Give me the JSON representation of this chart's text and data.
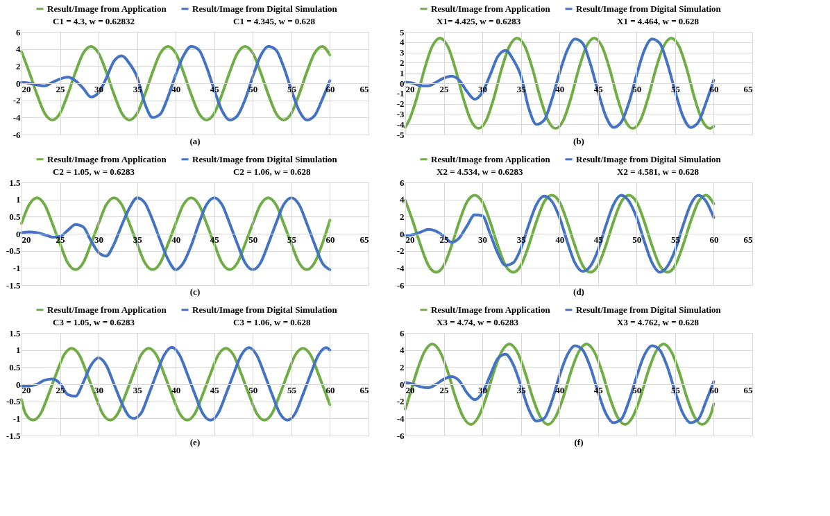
{
  "chart_data": [
    {
      "type": "line",
      "xlim": [
        20,
        65
      ],
      "xticks": [
        20,
        25,
        30,
        35,
        40,
        45,
        50,
        55,
        60,
        65
      ],
      "ylim": [
        -6,
        6
      ],
      "yticks": [
        -6,
        -4,
        -2,
        0,
        2,
        4,
        6
      ],
      "grid": true,
      "legend": "top",
      "annotations": [
        "C1 = 4.3, w = 0.62832",
        "C1 = 4.345, w = 0.628",
        "(a)"
      ],
      "series": [
        {
          "name": "Result/Image from Application",
          "color": "#70ad47",
          "x": [
            20,
            21,
            22,
            23,
            24,
            25,
            26,
            27,
            28,
            29,
            30,
            31,
            32,
            33,
            34,
            35,
            36,
            37,
            38,
            39,
            40,
            41,
            42,
            43,
            44,
            45,
            46,
            47,
            48,
            49,
            50,
            51,
            52,
            53,
            54,
            55,
            56,
            57,
            58,
            59,
            60
          ],
          "values": [
            3.7,
            1.3,
            -1.3,
            -3.5,
            -4.3,
            -3.5,
            -1.3,
            1.3,
            3.5,
            4.3,
            3.5,
            1.3,
            -1.3,
            -3.5,
            -4.3,
            -3.5,
            -1.3,
            1.3,
            3.5,
            4.3,
            3.5,
            1.3,
            -1.3,
            -3.5,
            -4.3,
            -3.5,
            -1.3,
            1.3,
            3.5,
            4.3,
            3.5,
            1.3,
            -1.3,
            -3.5,
            -4.3,
            -3.5,
            -1.3,
            1.3,
            3.5,
            4.3,
            3.3
          ]
        },
        {
          "name": "Result/Image from Digital Simulation",
          "color": "#4472c4",
          "x": [
            20,
            21,
            22,
            23,
            24,
            25,
            26,
            27,
            28,
            29,
            30,
            31,
            32,
            33,
            34,
            35,
            36,
            37,
            38,
            39,
            40,
            41,
            42,
            43,
            44,
            45,
            46,
            47,
            48,
            49,
            50,
            51,
            52,
            53,
            54,
            55,
            56,
            57,
            58,
            59,
            60
          ],
          "values": [
            0.1,
            0,
            -0.2,
            -0.3,
            0.1,
            0.5,
            0.7,
            0.3,
            -0.6,
            -1.6,
            -1.1,
            0.6,
            2.6,
            3.2,
            2.3,
            0.7,
            -2.4,
            -4.0,
            -3.6,
            -1.6,
            1.0,
            3.2,
            4.3,
            3.9,
            1.9,
            -0.8,
            -3.2,
            -4.3,
            -3.8,
            -1.9,
            0.8,
            3.2,
            4.3,
            3.9,
            1.9,
            -0.8,
            -3.2,
            -4.3,
            -3.8,
            -1.9,
            0.3
          ]
        }
      ]
    },
    {
      "type": "line",
      "xlim": [
        20,
        65
      ],
      "xticks": [
        20,
        25,
        30,
        35,
        40,
        45,
        50,
        55,
        60,
        65
      ],
      "ylim": [
        -5,
        5
      ],
      "yticks": [
        -5,
        -4,
        -3,
        -2,
        -1,
        0,
        1,
        2,
        3,
        4,
        5
      ],
      "grid": true,
      "legend": "top",
      "annotations": [
        "X1= 4.425, w = 0.6283",
        "X1 = 4.464, w = 0.628",
        "(b)"
      ],
      "series": [
        {
          "name": "Result/Image from Application",
          "color": "#70ad47",
          "x": [
            20,
            20.5,
            21.5,
            22.5,
            23.5,
            24.5,
            25.5,
            26.5,
            27.5,
            28.5,
            29.5,
            30.5,
            31.5,
            32.5,
            33.5,
            34.5,
            35.5,
            36.5,
            37.5,
            38.5,
            39.5,
            40.5,
            41.5,
            42.5,
            43.5,
            44.5,
            45.5,
            46.5,
            47.5,
            48.5,
            49.5,
            50.5,
            51.5,
            52.5,
            53.5,
            54.5,
            55.5,
            56.5,
            57.5,
            58.5,
            59.5,
            60
          ],
          "values": [
            -4.3,
            -3.6,
            -1.4,
            1.4,
            3.6,
            4.4,
            3.6,
            1.4,
            -1.4,
            -3.6,
            -4.4,
            -3.6,
            -1.4,
            1.4,
            3.6,
            4.4,
            3.6,
            1.4,
            -1.4,
            -3.6,
            -4.4,
            -3.6,
            -1.4,
            1.4,
            3.6,
            4.4,
            3.6,
            1.4,
            -1.4,
            -3.6,
            -4.4,
            -3.6,
            -1.4,
            1.4,
            3.6,
            4.4,
            3.6,
            1.4,
            -1.4,
            -3.6,
            -4.4,
            -4.2
          ]
        },
        {
          "name": "Result/Image from Digital Simulation",
          "color": "#4472c4",
          "x": [
            20,
            21,
            22,
            23,
            24,
            25,
            26,
            27,
            28,
            29,
            30,
            31,
            32,
            33,
            34,
            35,
            36,
            37,
            38,
            39,
            40,
            41,
            42,
            43,
            44,
            45,
            46,
            47,
            48,
            49,
            50,
            51,
            52,
            53,
            54,
            55,
            56,
            57,
            58,
            59,
            60
          ],
          "values": [
            0.1,
            0,
            -0.25,
            -0.25,
            0.1,
            0.5,
            0.7,
            0.3,
            -0.8,
            -1.55,
            -0.9,
            0.8,
            2.6,
            3.2,
            2.3,
            0.7,
            -2.4,
            -4.0,
            -3.6,
            -1.6,
            1.0,
            3.2,
            4.3,
            3.9,
            1.9,
            -0.8,
            -3.2,
            -4.3,
            -3.8,
            -1.9,
            0.8,
            3.2,
            4.3,
            3.9,
            1.9,
            -0.8,
            -3.2,
            -4.3,
            -3.8,
            -1.9,
            0.3
          ]
        }
      ]
    },
    {
      "type": "line",
      "xlim": [
        20,
        65
      ],
      "xticks": [
        20,
        25,
        30,
        35,
        40,
        45,
        50,
        55,
        60,
        65
      ],
      "ylim": [
        -1.5,
        1.5
      ],
      "yticks": [
        -1.5,
        -1,
        -0.5,
        0,
        0.5,
        1,
        1.5
      ],
      "grid": true,
      "legend": "top",
      "annotations": [
        "C2 = 1.05, w = 0.6283",
        "C2 = 1.06, w = 0.628",
        "(c)"
      ],
      "series": [
        {
          "name": "Result/Image from Application",
          "color": "#70ad47",
          "x": [
            20,
            21,
            22,
            23,
            24,
            25,
            26,
            27,
            28,
            29,
            30,
            31,
            32,
            33,
            34,
            35,
            36,
            37,
            38,
            39,
            40,
            41,
            42,
            43,
            44,
            45,
            46,
            47,
            48,
            49,
            50,
            51,
            52,
            53,
            54,
            55,
            56,
            57,
            58,
            59,
            60
          ],
          "values": [
            0.3,
            0.85,
            1.05,
            0.85,
            0.3,
            -0.3,
            -0.85,
            -1.05,
            -0.85,
            -0.3,
            0.3,
            0.85,
            1.05,
            0.85,
            0.3,
            -0.3,
            -0.85,
            -1.05,
            -0.85,
            -0.3,
            0.3,
            0.85,
            1.05,
            0.85,
            0.3,
            -0.3,
            -0.85,
            -1.05,
            -0.85,
            -0.3,
            0.3,
            0.85,
            1.05,
            0.85,
            0.3,
            -0.3,
            -0.85,
            -1.05,
            -0.85,
            -0.3,
            0.4
          ]
        },
        {
          "name": "Result/Image from Digital Simulation",
          "color": "#4472c4",
          "x": [
            20,
            21,
            22,
            23,
            24,
            25,
            26,
            27,
            28,
            29,
            30,
            31,
            32,
            33,
            34,
            35,
            36,
            37,
            38,
            39,
            40,
            41,
            42,
            43,
            44,
            45,
            46,
            47,
            48,
            49,
            50,
            51,
            52,
            53,
            54,
            55,
            56,
            57,
            58,
            59,
            60
          ],
          "values": [
            0.03,
            0.05,
            0.03,
            -0.03,
            -0.1,
            -0.08,
            0.1,
            0.27,
            0.2,
            -0.2,
            -0.55,
            -0.65,
            -0.3,
            0.25,
            0.75,
            1.05,
            0.9,
            0.4,
            -0.2,
            -0.75,
            -1.05,
            -0.85,
            -0.35,
            0.3,
            0.85,
            1.05,
            0.85,
            0.3,
            -0.3,
            -0.85,
            -1.05,
            -0.85,
            -0.3,
            0.3,
            0.85,
            1.05,
            0.85,
            0.3,
            -0.3,
            -0.85,
            -1.05
          ]
        }
      ]
    },
    {
      "type": "line",
      "xlim": [
        20,
        65
      ],
      "xticks": [
        20,
        25,
        30,
        35,
        40,
        45,
        50,
        55,
        60,
        65
      ],
      "ylim": [
        -6,
        6
      ],
      "yticks": [
        -6,
        -4,
        -2,
        0,
        2,
        4,
        6
      ],
      "grid": true,
      "legend": "top",
      "annotations": [
        "X2 = 4.534, w = 0.6283",
        "X2 = 4.581, w = 0.628",
        "(d)"
      ],
      "series": [
        {
          "name": "Result/Image from Application",
          "color": "#70ad47",
          "x": [
            20,
            21,
            22,
            23,
            24,
            25,
            26,
            27,
            28,
            29,
            30,
            31,
            32,
            33,
            34,
            35,
            36,
            37,
            38,
            39,
            40,
            41,
            42,
            43,
            44,
            45,
            46,
            47,
            48,
            49,
            50,
            51,
            52,
            53,
            54,
            55,
            56,
            57,
            58,
            59,
            60
          ],
          "values": [
            3.9,
            1.4,
            -1.4,
            -3.7,
            -4.5,
            -3.7,
            -1.4,
            1.4,
            3.7,
            4.5,
            3.7,
            1.4,
            -1.4,
            -3.7,
            -4.5,
            -3.7,
            -1.4,
            1.4,
            3.7,
            4.5,
            3.7,
            1.4,
            -1.4,
            -3.7,
            -4.5,
            -3.7,
            -1.4,
            1.4,
            3.7,
            4.5,
            3.7,
            1.4,
            -1.4,
            -3.7,
            -4.5,
            -3.7,
            -1.4,
            1.4,
            3.7,
            4.5,
            3.5
          ]
        },
        {
          "name": "Result/Image from Digital Simulation",
          "color": "#4472c4",
          "x": [
            20,
            21,
            22,
            23,
            24,
            25,
            26,
            27,
            28,
            29,
            30,
            31,
            32,
            33,
            34,
            35,
            36,
            37,
            38,
            39,
            40,
            41,
            42,
            43,
            44,
            45,
            46,
            47,
            48,
            49,
            50,
            51,
            52,
            53,
            54,
            55,
            56,
            57,
            58,
            59,
            60
          ],
          "values": [
            -0.2,
            -0.1,
            0.2,
            0.5,
            0.3,
            -0.3,
            -1.0,
            -0.5,
            0.9,
            2.2,
            2.1,
            0,
            -2.3,
            -3.7,
            -3.4,
            -1.7,
            1.0,
            3.4,
            4.4,
            3.8,
            1.9,
            -0.9,
            -3.4,
            -4.4,
            -3.8,
            -1.9,
            0.9,
            3.4,
            4.5,
            3.8,
            1.9,
            -0.9,
            -3.4,
            -4.5,
            -3.8,
            -1.9,
            0.9,
            3.4,
            4.5,
            3.8,
            1.9
          ]
        }
      ]
    },
    {
      "type": "line",
      "xlim": [
        20,
        65
      ],
      "xticks": [
        20,
        25,
        30,
        35,
        40,
        45,
        50,
        55,
        60,
        65
      ],
      "ylim": [
        -1.5,
        1.5
      ],
      "yticks": [
        -1.5,
        -1,
        -0.5,
        0,
        0.5,
        1,
        1.5
      ],
      "grid": true,
      "legend": "top",
      "annotations": [
        "C3 = 1.05, w = 0.6283",
        "C3 = 1.06, w = 0.628",
        "(e)"
      ],
      "series": [
        {
          "name": "Result/Image from Application",
          "color": "#70ad47",
          "x": [
            20,
            20.5,
            21.5,
            22.5,
            23.5,
            24.5,
            25.5,
            26.5,
            27.5,
            28.5,
            29.5,
            30.5,
            31.5,
            32.5,
            33.5,
            34.5,
            35.5,
            36.5,
            37.5,
            38.5,
            39.5,
            40.5,
            41.5,
            42.5,
            43.5,
            44.5,
            45.5,
            46.5,
            47.5,
            48.5,
            49.5,
            50.5,
            51.5,
            52.5,
            53.5,
            54.5,
            55.5,
            56.5,
            57.5,
            58.5,
            59.5,
            60
          ],
          "values": [
            -0.45,
            -0.85,
            -1.05,
            -0.85,
            -0.3,
            0.3,
            0.85,
            1.05,
            0.85,
            0.3,
            -0.3,
            -0.85,
            -1.05,
            -0.85,
            -0.3,
            0.3,
            0.85,
            1.05,
            0.85,
            0.3,
            -0.3,
            -0.85,
            -1.05,
            -0.85,
            -0.3,
            0.3,
            0.85,
            1.05,
            0.85,
            0.3,
            -0.3,
            -0.85,
            -1.05,
            -0.85,
            -0.3,
            0.3,
            0.85,
            1.05,
            0.85,
            0.3,
            -0.3,
            -0.6
          ]
        },
        {
          "name": "Result/Image from Digital Simulation",
          "color": "#4472c4",
          "x": [
            20,
            21,
            22,
            23,
            24,
            25,
            26,
            27,
            28,
            29,
            30,
            31,
            32,
            33,
            34,
            34.5,
            35.5,
            36.5,
            37.5,
            38.5,
            39.5,
            40.5,
            41.5,
            42.5,
            43.5,
            44.5,
            45.5,
            46.5,
            47.5,
            48.5,
            49.5,
            50.5,
            51.5,
            52.5,
            53.5,
            54.5,
            55.5,
            56.5,
            57.5,
            58.5,
            59.5,
            60
          ],
          "values": [
            -0.05,
            -0.05,
            0,
            0.12,
            0.15,
            0.02,
            -0.3,
            -0.35,
            0.05,
            0.55,
            0.77,
            0.55,
            0,
            -0.55,
            -0.95,
            -1.0,
            -0.85,
            -0.3,
            0.3,
            0.85,
            1.08,
            0.85,
            0.3,
            -0.3,
            -0.85,
            -1.05,
            -0.85,
            -0.3,
            0.3,
            0.85,
            1.07,
            0.85,
            0.3,
            -0.3,
            -0.85,
            -1.05,
            -0.85,
            -0.3,
            0.3,
            0.85,
            1.07,
            1.0
          ]
        }
      ]
    },
    {
      "type": "line",
      "xlim": [
        20,
        65
      ],
      "xticks": [
        20,
        25,
        30,
        35,
        40,
        45,
        50,
        55,
        60,
        65
      ],
      "ylim": [
        -6,
        6
      ],
      "yticks": [
        -6,
        -4,
        -2,
        0,
        2,
        4,
        6
      ],
      "grid": true,
      "legend": "top",
      "annotations": [
        "X3 = 4.74, w = 0.6283",
        "X3 = 4.762, w = 0.628",
        "(f)"
      ],
      "series": [
        {
          "name": "Result/Image from Application",
          "color": "#70ad47",
          "x": [
            20,
            20.5,
            21.5,
            22.5,
            23.5,
            24.5,
            25.5,
            26.5,
            27.5,
            28.5,
            29.5,
            30.5,
            31.5,
            32.5,
            33.5,
            34.5,
            35.5,
            36.5,
            37.5,
            38.5,
            39.5,
            40.5,
            41.5,
            42.5,
            43.5,
            44.5,
            45.5,
            46.5,
            47.5,
            48.5,
            49.5,
            50.5,
            51.5,
            52.5,
            53.5,
            54.5,
            55.5,
            56.5,
            57.5,
            58.5,
            59.5,
            60
          ],
          "values": [
            -2.9,
            -1.5,
            1.5,
            3.8,
            4.7,
            3.8,
            1.5,
            -1.5,
            -3.8,
            -4.7,
            -3.8,
            -1.5,
            1.5,
            3.8,
            4.7,
            3.8,
            1.5,
            -1.5,
            -3.8,
            -4.7,
            -3.8,
            -1.5,
            1.5,
            3.8,
            4.7,
            3.8,
            1.5,
            -1.5,
            -3.8,
            -4.7,
            -3.8,
            -1.5,
            1.5,
            3.8,
            4.7,
            3.8,
            1.5,
            -1.5,
            -3.8,
            -4.7,
            -3.8,
            -2.3
          ]
        },
        {
          "name": "Result/Image from Digital Simulation",
          "color": "#4472c4",
          "x": [
            20,
            21,
            22,
            23,
            24,
            25,
            26,
            27,
            28,
            29,
            30,
            31,
            32,
            33,
            34,
            35,
            36,
            37,
            38,
            39,
            40,
            41,
            42,
            43,
            44,
            45,
            46,
            47,
            48,
            49,
            50,
            51,
            52,
            53,
            54,
            55,
            56,
            57,
            58,
            59,
            60
          ],
          "values": [
            0.2,
            0,
            -0.3,
            -0.4,
            0,
            0.6,
            0.9,
            0.4,
            -1.0,
            -1.8,
            -1.0,
            1.0,
            3.0,
            3.5,
            2.3,
            -0.2,
            -2.9,
            -4.3,
            -4.0,
            -2.0,
            1.0,
            3.4,
            4.5,
            4.0,
            2.0,
            -0.9,
            -3.4,
            -4.5,
            -4.1,
            -2.0,
            0.9,
            3.4,
            4.5,
            4.0,
            2.0,
            -0.9,
            -3.4,
            -4.5,
            -4.1,
            -2.0,
            0.3
          ]
        }
      ]
    }
  ]
}
